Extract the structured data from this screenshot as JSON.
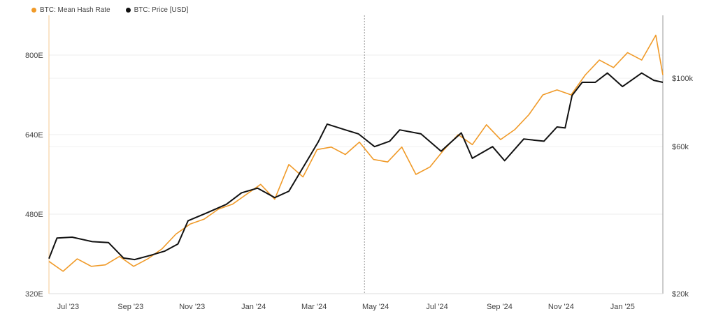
{
  "colors": {
    "hash": "#f09a28",
    "price": "#111111"
  },
  "chart_data": {
    "type": "line",
    "series": [
      {
        "name": "BTC: Mean Hash Rate",
        "axis": "left",
        "x": [
          "2023-06-12",
          "2023-06-26",
          "2023-07-10",
          "2023-07-24",
          "2023-08-07",
          "2023-08-21",
          "2023-09-04",
          "2023-09-18",
          "2023-10-02",
          "2023-10-16",
          "2023-10-30",
          "2023-11-13",
          "2023-11-27",
          "2023-12-11",
          "2023-12-25",
          "2024-01-08",
          "2024-01-22",
          "2024-02-05",
          "2024-02-19",
          "2024-03-04",
          "2024-03-18",
          "2024-04-01",
          "2024-04-15",
          "2024-04-29",
          "2024-05-13",
          "2024-05-27",
          "2024-06-10",
          "2024-06-24",
          "2024-07-08",
          "2024-07-22",
          "2024-08-05",
          "2024-08-19",
          "2024-09-02",
          "2024-09-16",
          "2024-09-30",
          "2024-10-14",
          "2024-10-28",
          "2024-11-11",
          "2024-11-25",
          "2024-12-09",
          "2024-12-23",
          "2025-01-06",
          "2025-01-20",
          "2025-02-03",
          "2025-02-10"
        ],
        "values": [
          385,
          365,
          390,
          375,
          378,
          395,
          375,
          390,
          410,
          440,
          460,
          470,
          490,
          500,
          520,
          540,
          510,
          580,
          555,
          610,
          615,
          600,
          625,
          590,
          585,
          615,
          560,
          575,
          610,
          640,
          620,
          660,
          630,
          650,
          680,
          720,
          730,
          720,
          760,
          790,
          775,
          805,
          790,
          840,
          760
        ]
      },
      {
        "name": "BTC: Price [USD]",
        "axis": "right",
        "x": [
          "2023-06-12",
          "2023-06-20",
          "2023-07-05",
          "2023-07-25",
          "2023-08-10",
          "2023-08-25",
          "2023-09-05",
          "2023-09-20",
          "2023-10-05",
          "2023-10-18",
          "2023-10-28",
          "2023-11-15",
          "2023-12-05",
          "2023-12-20",
          "2024-01-05",
          "2024-01-22",
          "2024-02-05",
          "2024-02-20",
          "2024-03-05",
          "2024-03-14",
          "2024-04-01",
          "2024-04-14",
          "2024-04-30",
          "2024-05-15",
          "2024-05-25",
          "2024-06-15",
          "2024-07-05",
          "2024-07-25",
          "2024-08-05",
          "2024-08-25",
          "2024-09-06",
          "2024-09-25",
          "2024-10-15",
          "2024-10-28",
          "2024-11-05",
          "2024-11-12",
          "2024-11-22",
          "2024-12-05",
          "2024-12-17",
          "2025-01-01",
          "2025-01-20",
          "2025-02-01",
          "2025-02-10"
        ],
        "values": [
          26000,
          30300,
          30500,
          29500,
          29300,
          26100,
          25800,
          26600,
          27500,
          29000,
          34500,
          36500,
          39000,
          42500,
          44000,
          41000,
          43000,
          52000,
          62000,
          71000,
          68000,
          66000,
          60000,
          62500,
          68000,
          66000,
          58000,
          66500,
          55000,
          60000,
          54000,
          63500,
          62500,
          69500,
          69000,
          88000,
          97000,
          97000,
          104000,
          94000,
          104000,
          98500,
          97000
        ]
      }
    ],
    "ylim_left": [
      320,
      880
    ],
    "ylim_right_log": [
      20000,
      160000
    ],
    "xlim": [
      "2023-06-12",
      "2025-02-10"
    ],
    "vline": "2024-04-20",
    "left_ticks": [
      "800E",
      "640E",
      "480E",
      "320E"
    ],
    "right_ticks": [
      "$100k",
      "$60k",
      "$20k"
    ],
    "x_ticks": [
      "Jul '23",
      "Sep '23",
      "Nov '23",
      "Jan '24",
      "Mar '24",
      "May '24",
      "Jul '24",
      "Sep '24",
      "Nov '24",
      "Jan '25"
    ],
    "grid": true,
    "legend_position": "top-left"
  }
}
